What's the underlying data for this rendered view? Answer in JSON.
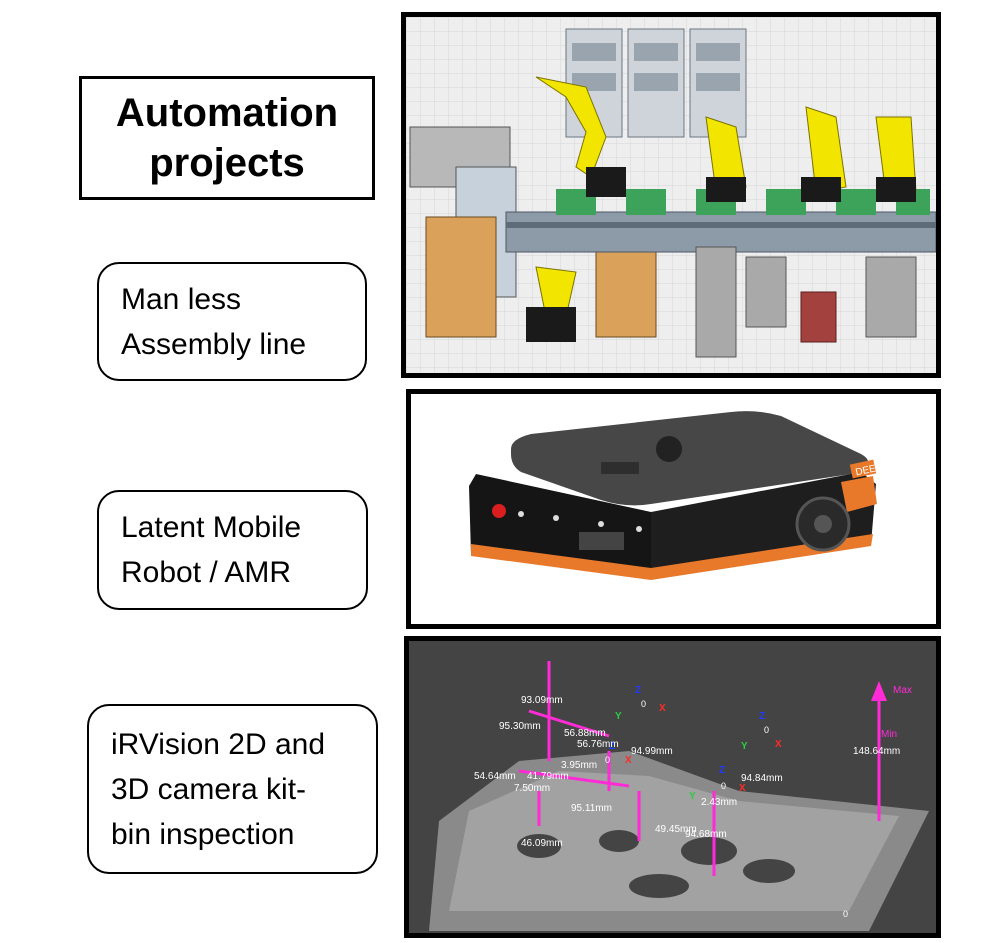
{
  "title": "Automation\nprojects",
  "items": [
    {
      "label": "Man less\nAssembly line"
    },
    {
      "label": "Latent Mobile\nRobot / AMR"
    },
    {
      "label": "iRVision 2D and\n3D camera kit-\nbin inspection"
    }
  ],
  "robot": {
    "badge": "DEEE"
  },
  "vision": {
    "measurements": [
      "93.09mm",
      "95.30mm",
      "56.88mm",
      "56.76mm",
      "3.95mm",
      "94.99mm",
      "54.64mm",
      "41.79mm",
      "7.50mm",
      "95.11mm",
      "46.09mm",
      "49.45mm",
      "2.43mm",
      "94.68mm",
      "94.84mm",
      "148.64mm"
    ],
    "max_label": "Max",
    "min_label": "Min",
    "axis_z": "Z",
    "axis_y": "Y",
    "axis_x": "X",
    "zero": "0"
  },
  "colors": {
    "magenta": "#ff2bd6",
    "robot_yellow": "#f2e600",
    "amr_orange": "#e8782a",
    "vision_bg": "#444444"
  }
}
